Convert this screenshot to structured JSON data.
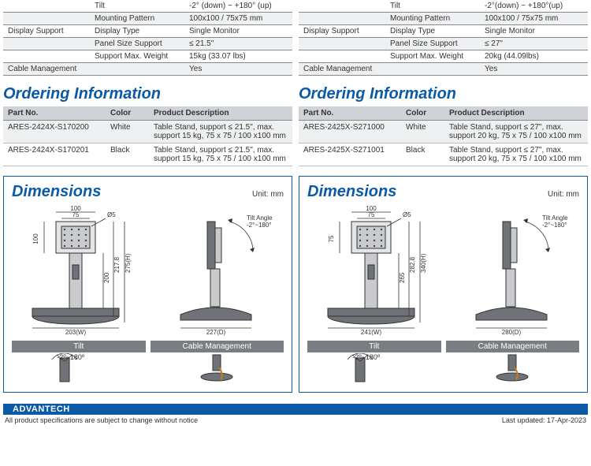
{
  "left": {
    "spec_rows": [
      {
        "cat": "",
        "attr": "Tilt",
        "val": "-2° (down) ~ +180° (up)",
        "alt": false
      },
      {
        "cat": "",
        "attr": "Mounting Pattern",
        "val": "100x100 / 75x75 mm",
        "alt": true
      },
      {
        "cat": "Display Support",
        "attr": "Display Type",
        "val": "Single Monitor",
        "alt": false
      },
      {
        "cat": "",
        "attr": "Panel Size Support",
        "val": "≤ 21.5\"",
        "alt": true
      },
      {
        "cat": "",
        "attr": "Support Max. Weight",
        "val": "15kg (33.07 lbs)",
        "alt": false
      },
      {
        "cat": "Cable Management",
        "attr": "",
        "val": "Yes",
        "alt": true
      }
    ],
    "ordering_heading": "Ordering Information",
    "ord_headers": {
      "pn": "Part No.",
      "color": "Color",
      "desc": "Product Description"
    },
    "ord_rows": [
      {
        "pn": "ARES-2424X-S170200",
        "color": "White",
        "desc": "Table Stand, support ≤ 21.5\", max. support 15 kg, 75 x 75 / 100 x100 mm",
        "alt": true
      },
      {
        "pn": "ARES-2424X-S170201",
        "color": "Black",
        "desc": "Table Stand, support ≤ 21.5\", max. support 15 kg, 75 x 75 / 100 x100 mm",
        "alt": false
      }
    ],
    "dim_title": "Dimensions",
    "dim_unit": "Unit: mm",
    "front": {
      "plate_out": "100",
      "plate_in": "75",
      "height": "100",
      "col_h": "200",
      "overall_h": "217.8",
      "width": "203(W)",
      "h_label": "275(H)",
      "screw": "Ø5"
    },
    "side": {
      "tilt": "Tilt Angle\n-2°~180°",
      "depth": "227(D)"
    },
    "feat_tilt_label": "Tilt",
    "feat_tilt_text": "-2º~180º",
    "feat_cable_label": "Cable Management"
  },
  "right": {
    "spec_rows": [
      {
        "cat": "",
        "attr": "Tilt",
        "val": "-2°(down) ~ +180°(up)",
        "alt": false
      },
      {
        "cat": "",
        "attr": "Mounting Pattern",
        "val": "100x100 / 75x75 mm",
        "alt": true
      },
      {
        "cat": "Display Support",
        "attr": "Display Type",
        "val": "Single Monitor",
        "alt": false
      },
      {
        "cat": "",
        "attr": "Panel Size Support",
        "val": "≤ 27\"",
        "alt": true
      },
      {
        "cat": "",
        "attr": "Support Max. Weight",
        "val": "20kg (44.09lbs)",
        "alt": false
      },
      {
        "cat": "Cable Management",
        "attr": "",
        "val": "Yes",
        "alt": true
      }
    ],
    "ordering_heading": "Ordering Information",
    "ord_headers": {
      "pn": "Part No.",
      "color": "Color",
      "desc": "Product Description"
    },
    "ord_rows": [
      {
        "pn": "ARES-2425X-S271000",
        "color": "White",
        "desc": "Table Stand, support ≤ 27\", max. support 20 kg, 75 x 75 / 100 x100 mm",
        "alt": true
      },
      {
        "pn": "ARES-2425X-S271001",
        "color": "Black",
        "desc": "Table Stand, support ≤ 27\", max. support 20 kg, 75 x 75 / 100 x100 mm",
        "alt": false
      }
    ],
    "dim_title": "Dimensions",
    "dim_unit": "Unit: mm",
    "front": {
      "plate_out": "100",
      "plate_in": "75",
      "height": "75",
      "col_h": "265",
      "overall_h": "282.8",
      "width": "241(W)",
      "h_label": "340(H)",
      "screw": "Ø5"
    },
    "side": {
      "tilt": "Tilt Angle\n-2°~180°",
      "depth": "280(D)"
    },
    "feat_tilt_label": "Tilt",
    "feat_tilt_text": "-2º~180º",
    "feat_cable_label": "Cable Management"
  },
  "footer": {
    "brand": "ADVANTECH",
    "note": "All product specifications are subject to change without notice",
    "updated": "Last updated: 17-Apr-2023"
  }
}
